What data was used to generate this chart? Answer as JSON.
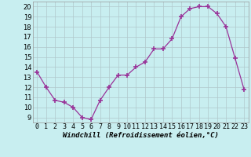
{
  "x": [
    0,
    1,
    2,
    3,
    4,
    5,
    6,
    7,
    8,
    9,
    10,
    11,
    12,
    13,
    14,
    15,
    16,
    17,
    18,
    19,
    20,
    21,
    22,
    23
  ],
  "y": [
    13.5,
    12.0,
    10.7,
    10.5,
    10.0,
    9.0,
    8.8,
    10.7,
    12.0,
    13.2,
    13.2,
    14.0,
    14.5,
    15.8,
    15.8,
    16.8,
    19.0,
    19.8,
    20.0,
    20.0,
    19.3,
    18.0,
    14.9,
    11.8
  ],
  "line_color": "#993399",
  "marker": "+",
  "marker_size": 4,
  "xlabel": "Windchill (Refroidissement éolien,°C)",
  "ylabel_ticks": [
    9,
    10,
    11,
    12,
    13,
    14,
    15,
    16,
    17,
    18,
    19,
    20
  ],
  "ylim": [
    8.5,
    20.5
  ],
  "xlim": [
    -0.5,
    23.5
  ],
  "bg_color": "#c8eef0",
  "grid_color": "#b0c8cc",
  "xlabel_fontsize": 6.5,
  "tick_fontsize": 6.0
}
